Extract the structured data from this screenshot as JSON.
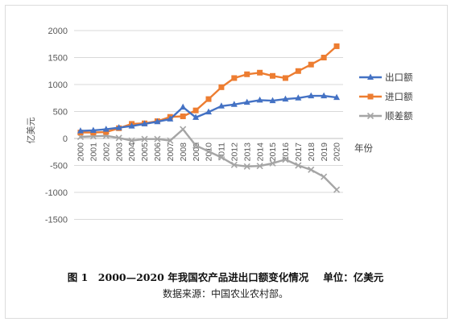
{
  "chart_data": {
    "type": "line",
    "ylabel": "亿美元",
    "xlabel": "年份",
    "ylim": [
      -2000,
      2000
    ],
    "yticks": [
      2000,
      1500,
      1000,
      500,
      0,
      -500,
      -1000,
      -1500
    ],
    "x": [
      "2000",
      "2001",
      "2002",
      "2003",
      "2004",
      "2005",
      "2006",
      "2007",
      "2008",
      "2009",
      "2010",
      "2011",
      "2012",
      "2013",
      "2014",
      "2015",
      "2016",
      "2017",
      "2018",
      "2019",
      "2020"
    ],
    "series": [
      {
        "name": "出口额",
        "color": "#4472c4",
        "marker": "triangle",
        "values": [
          140,
          150,
          170,
          200,
          230,
          270,
          310,
          360,
          580,
          390,
          490,
          600,
          630,
          670,
          710,
          700,
          730,
          750,
          790,
          790,
          760
        ]
      },
      {
        "name": "进口额",
        "color": "#ed7d31",
        "marker": "square",
        "values": [
          110,
          110,
          120,
          190,
          270,
          280,
          320,
          400,
          410,
          520,
          730,
          950,
          1120,
          1190,
          1220,
          1160,
          1120,
          1250,
          1370,
          1500,
          1710
        ]
      },
      {
        "name": "顺差额",
        "color": "#a5a5a5",
        "marker": "x",
        "values": [
          30,
          40,
          50,
          10,
          -40,
          -10,
          -10,
          -40,
          170,
          -130,
          -240,
          -350,
          -490,
          -520,
          -510,
          -460,
          -390,
          -500,
          -580,
          -710,
          -950
        ]
      }
    ],
    "legend_position": "right",
    "grid": true
  },
  "caption": {
    "title": "图 1　2000—2020 年我国农产品进出口额变化情况",
    "unit": "单位：亿美元"
  },
  "source": "数据来源：中国农业农村部。"
}
